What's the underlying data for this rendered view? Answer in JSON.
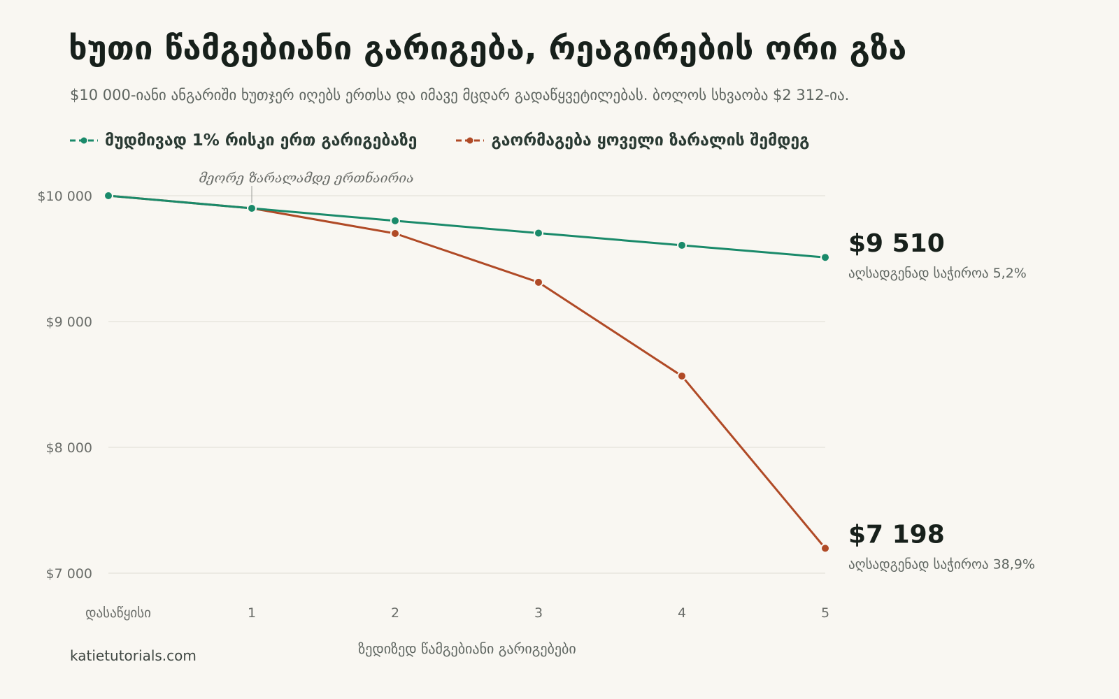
{
  "title": "ხუთი წამგებიანი გარიგება, რეაგირების ორი გზა",
  "subtitle": "$10 000-იანი ანგარიში ხუთჯერ იღებს ერთსა და იმავე მცდარ გადაწყვეტილებას. ბოლოს სხვაობა $2 312-ია.",
  "source": "katietutorials.com",
  "colors": {
    "steady": "#1a8a6a",
    "doubling": "#b04a26",
    "grid": "#e4e1da",
    "background": "#f9f7f2"
  },
  "chart_data": {
    "type": "line",
    "title": "ხუთი წამგებიანი გარიგება, რეაგირების ორი გზა",
    "xlabel": "ზედიზედ წამგებიანი გარიგებები",
    "ylabel": "",
    "categories": [
      "დასაწყისი",
      "1",
      "2",
      "3",
      "4",
      "5"
    ],
    "y_ticks": [
      {
        "value": 10000,
        "label": "$10 000"
      },
      {
        "value": 9000,
        "label": "$9 000"
      },
      {
        "value": 8000,
        "label": "$8 000"
      },
      {
        "value": 7000,
        "label": "$7 000"
      }
    ],
    "ylim": [
      7000,
      10000
    ],
    "grid": true,
    "legend_position": "top-left",
    "series": [
      {
        "name": "მუდმივად 1% რისკი ერთ გარიგებაზე",
        "color": "#1a8a6a",
        "values": [
          10000,
          9900,
          9801,
          9703,
          9606,
          9510
        ],
        "end_label": "$9 510",
        "end_note": "აღსადგენად საჭიროა 5,2%"
      },
      {
        "name": "გაორმაგება ყოველი ზარალის შემდეგ",
        "color": "#b04a26",
        "values": [
          10000,
          9900,
          9700,
          9312,
          8567,
          7198
        ],
        "end_label": "$7 198",
        "end_note": "აღსადგენად საჭიროა 38,9%"
      }
    ],
    "annotation": {
      "text": "მეორე ზარალამდე ერთნაირია",
      "at_category": "1"
    }
  }
}
